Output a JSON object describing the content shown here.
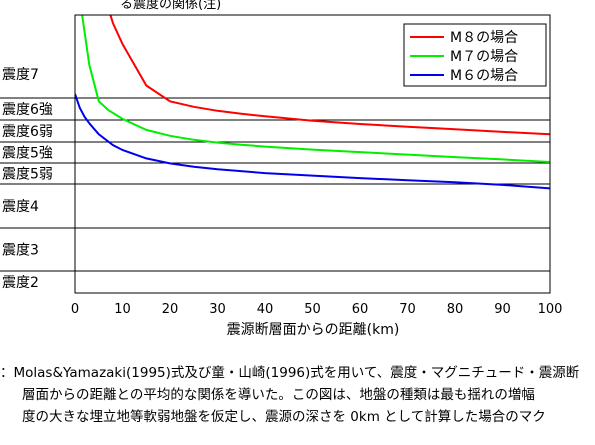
{
  "chart_data": {
    "type": "line",
    "title": "",
    "xlabel": "震源断層面からの距離(km)",
    "ylabel": "",
    "xlim": [
      0,
      100
    ],
    "x_ticks": [
      "0",
      "10",
      "20",
      "30",
      "40",
      "50",
      "60",
      "70",
      "80",
      "90",
      "100"
    ],
    "y_categories": [
      "震度2",
      "震度3",
      "震度4",
      "震度5弱",
      "震度5強",
      "震度6弱",
      "震度6強",
      "震度7"
    ],
    "grid": true,
    "legend_position": "top-right",
    "series": [
      {
        "name": "M８の場合",
        "color": "#ff0000",
        "points": [
          [
            3,
            8.95
          ],
          [
            5,
            8.45
          ],
          [
            8,
            7.9
          ],
          [
            10,
            7.65
          ],
          [
            15,
            7.15
          ],
          [
            20,
            6.85
          ],
          [
            25,
            6.6
          ],
          [
            30,
            6.42
          ],
          [
            35,
            6.28
          ],
          [
            40,
            6.17
          ],
          [
            45,
            6.07
          ],
          [
            50,
            5.97
          ],
          [
            60,
            5.82
          ],
          [
            70,
            5.69
          ],
          [
            80,
            5.58
          ],
          [
            90,
            5.46
          ],
          [
            100,
            5.35
          ]
        ]
      },
      {
        "name": "M７の場合",
        "color": "#00ee00",
        "points": [
          [
            0,
            8.85
          ],
          [
            1,
            8.2
          ],
          [
            2,
            7.8
          ],
          [
            3,
            7.4
          ],
          [
            5,
            6.85
          ],
          [
            7,
            6.45
          ],
          [
            10,
            6.05
          ],
          [
            15,
            5.55
          ],
          [
            20,
            5.28
          ],
          [
            25,
            5.1
          ],
          [
            30,
            4.97
          ],
          [
            35,
            4.87
          ],
          [
            40,
            4.78
          ],
          [
            50,
            4.64
          ],
          [
            60,
            4.52
          ],
          [
            70,
            4.4
          ],
          [
            80,
            4.28
          ],
          [
            90,
            4.17
          ],
          [
            100,
            4.05
          ]
        ]
      },
      {
        "name": "M６の場合",
        "color": "#0000ee",
        "points": [
          [
            0,
            7.05
          ],
          [
            1,
            6.55
          ],
          [
            2,
            6.15
          ],
          [
            3,
            5.85
          ],
          [
            5,
            5.35
          ],
          [
            8,
            4.85
          ],
          [
            10,
            4.62
          ],
          [
            15,
            4.22
          ],
          [
            20,
            3.98
          ],
          [
            25,
            3.82
          ],
          [
            30,
            3.7
          ],
          [
            40,
            3.52
          ],
          [
            50,
            3.4
          ],
          [
            60,
            3.28
          ],
          [
            70,
            3.18
          ],
          [
            80,
            3.08
          ],
          [
            90,
            2.98
          ],
          [
            100,
            2.9
          ]
        ]
      }
    ]
  },
  "page_header": "る震度の関係(注)",
  "note_lines": [
    "：Molas&Yamazaki(1995)式及び童・山崎(1996)式を用いて、震度・マグニチュード・震源断",
    "層面からの距離との平均的な関係を導いた。この図は、地盤の種類は最も揺れの増幅",
    "度の大きな埋立地等軟弱地盤を仮定し、震源の深さを 0km として計算した場合のマク"
  ]
}
